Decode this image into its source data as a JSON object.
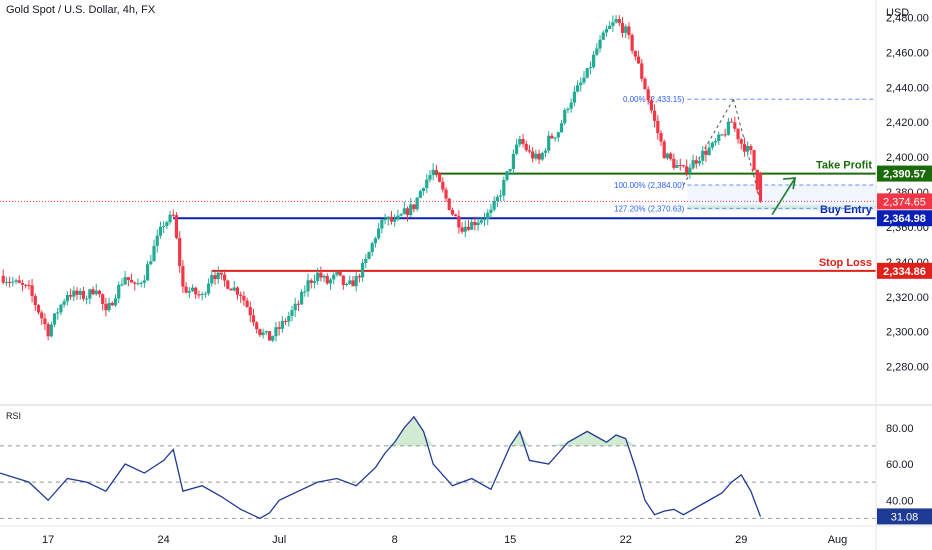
{
  "header": {
    "symbol_title": "Gold Spot / U.S. Dollar, 4h, FX",
    "currency": "USD"
  },
  "colors": {
    "up": "#22ab94",
    "down": "#f23645",
    "take_profit": "#1b6a0c",
    "buy_entry": "#0a1fb5",
    "stop_loss": "#e0201b",
    "current": "#f23645",
    "rsi_line": "#1f3a93",
    "fib": "#2962ff"
  },
  "chart_data": [
    {
      "type": "candlestick",
      "title": "Gold Spot / U.S. Dollar, 4h, FX",
      "ylabel": "USD",
      "ylim": [
        2262,
        2490
      ],
      "y_ticks": [
        "2,280.00",
        "2,300.00",
        "2,320.00",
        "2,340.00",
        "2,360.00",
        "2,380.00",
        "2,400.00",
        "2,420.00",
        "2,440.00",
        "2,460.00",
        "2,480.00"
      ],
      "x_ticks": [
        "17",
        "24",
        "Jul",
        "8",
        "15",
        "22",
        "29",
        "Aug"
      ],
      "x_tick_positions": [
        0,
        6,
        12,
        18,
        24,
        30,
        36,
        41
      ],
      "x_range_days": [
        -2.5,
        43
      ],
      "price_path": [
        [
          -2.5,
          2332
        ],
        [
          -1,
          2324
        ],
        [
          0,
          2300
        ],
        [
          0.5,
          2312
        ],
        [
          1,
          2322
        ],
        [
          2,
          2320
        ],
        [
          2.5,
          2326
        ],
        [
          3,
          2310
        ],
        [
          3.5,
          2322
        ],
        [
          4,
          2332
        ],
        [
          4.5,
          2325
        ],
        [
          5,
          2332
        ],
        [
          5.5,
          2348
        ],
        [
          6,
          2362
        ],
        [
          6.5,
          2366
        ],
        [
          7,
          2325
        ],
        [
          8,
          2320
        ],
        [
          8.5,
          2334
        ],
        [
          9,
          2330
        ],
        [
          10,
          2322
        ],
        [
          11,
          2300
        ],
        [
          11.5,
          2296
        ],
        [
          12,
          2302
        ],
        [
          13,
          2316
        ],
        [
          13.5,
          2328
        ],
        [
          14,
          2333
        ],
        [
          14.5,
          2328
        ],
        [
          15,
          2332
        ],
        [
          15.5,
          2325
        ],
        [
          16,
          2330
        ],
        [
          16.5,
          2340
        ],
        [
          17,
          2355
        ],
        [
          17.5,
          2365
        ],
        [
          18,
          2362
        ],
        [
          18.5,
          2368
        ],
        [
          19,
          2372
        ],
        [
          19.5,
          2385
        ],
        [
          20,
          2392
        ],
        [
          20.5,
          2380
        ],
        [
          21,
          2368
        ],
        [
          21.5,
          2360
        ],
        [
          22,
          2362
        ],
        [
          23,
          2368
        ],
        [
          23.5,
          2380
        ],
        [
          24,
          2395
        ],
        [
          24.5,
          2410
        ],
        [
          25,
          2402
        ],
        [
          25.5,
          2398
        ],
        [
          26,
          2410
        ],
        [
          26.5,
          2415
        ],
        [
          27,
          2430
        ],
        [
          28,
          2448
        ],
        [
          28.5,
          2462
        ],
        [
          29,
          2472
        ],
        [
          29.5,
          2478
        ],
        [
          30,
          2472
        ],
        [
          30.5,
          2458
        ],
        [
          31,
          2440
        ],
        [
          31.5,
          2420
        ],
        [
          32,
          2402
        ],
        [
          32.5,
          2396
        ],
        [
          33,
          2392
        ],
        [
          33.5,
          2397
        ],
        [
          34,
          2402
        ],
        [
          34.5,
          2406
        ],
        [
          35,
          2412
        ],
        [
          35.5,
          2420
        ],
        [
          36,
          2408
        ],
        [
          36.5,
          2402
        ],
        [
          37,
          2374.65
        ]
      ],
      "levels": [
        {
          "name": "Take Profit",
          "value": 2390.57,
          "price_label": "2,390.57",
          "text": "Take Profit",
          "color_key": "take_profit",
          "start_day": 20
        },
        {
          "name": "Buy Entry",
          "value": 2364.98,
          "price_label": "2,364.98",
          "text": "Buy Entry",
          "color_key": "buy_entry",
          "start_day": 6.5
        },
        {
          "name": "Stop Loss",
          "value": 2334.86,
          "price_label": "2,334.86",
          "text": "Stop Loss",
          "color_key": "stop_loss",
          "start_day": 8.5
        }
      ],
      "current_price": {
        "value": 2374.65,
        "label": "2,374.65"
      },
      "fibonacci": [
        {
          "ratio_label": "0.00% (2,433.15)",
          "value": 2433.15
        },
        {
          "ratio_label": "100.00% (2,384.00)",
          "value": 2384.0
        },
        {
          "ratio_label": "127.20% (2,370.63)",
          "value": 2370.63
        }
      ]
    },
    {
      "type": "line",
      "title": "RSI",
      "ylim": [
        28,
        92
      ],
      "y_ticks": [
        "40.00",
        "60.00",
        "80.00"
      ],
      "bands": [
        70,
        50,
        30
      ],
      "current": {
        "value": 31.08,
        "label": "31.08"
      },
      "x": [
        -2.5,
        -1,
        0,
        1,
        2,
        3,
        4,
        5,
        6,
        6.5,
        7,
        8,
        9,
        10,
        11,
        11.5,
        12,
        13,
        14,
        15,
        16,
        17,
        17.5,
        18,
        18.5,
        19,
        19.5,
        20,
        21,
        22,
        23,
        24,
        24.5,
        25,
        26,
        27,
        28,
        29,
        29.5,
        30,
        30.5,
        31,
        31.5,
        32,
        32.5,
        33,
        34,
        35,
        35.5,
        36,
        36.5,
        37
      ],
      "values": [
        55,
        50,
        40,
        52,
        50,
        45,
        60,
        55,
        62,
        68,
        45,
        48,
        42,
        35,
        30,
        33,
        40,
        45,
        50,
        52,
        48,
        58,
        66,
        72,
        80,
        86,
        78,
        60,
        48,
        52,
        46,
        70,
        78,
        62,
        60,
        72,
        78,
        72,
        76,
        74,
        58,
        40,
        32,
        34,
        35,
        32,
        38,
        44,
        50,
        54,
        45,
        31
      ]
    }
  ]
}
